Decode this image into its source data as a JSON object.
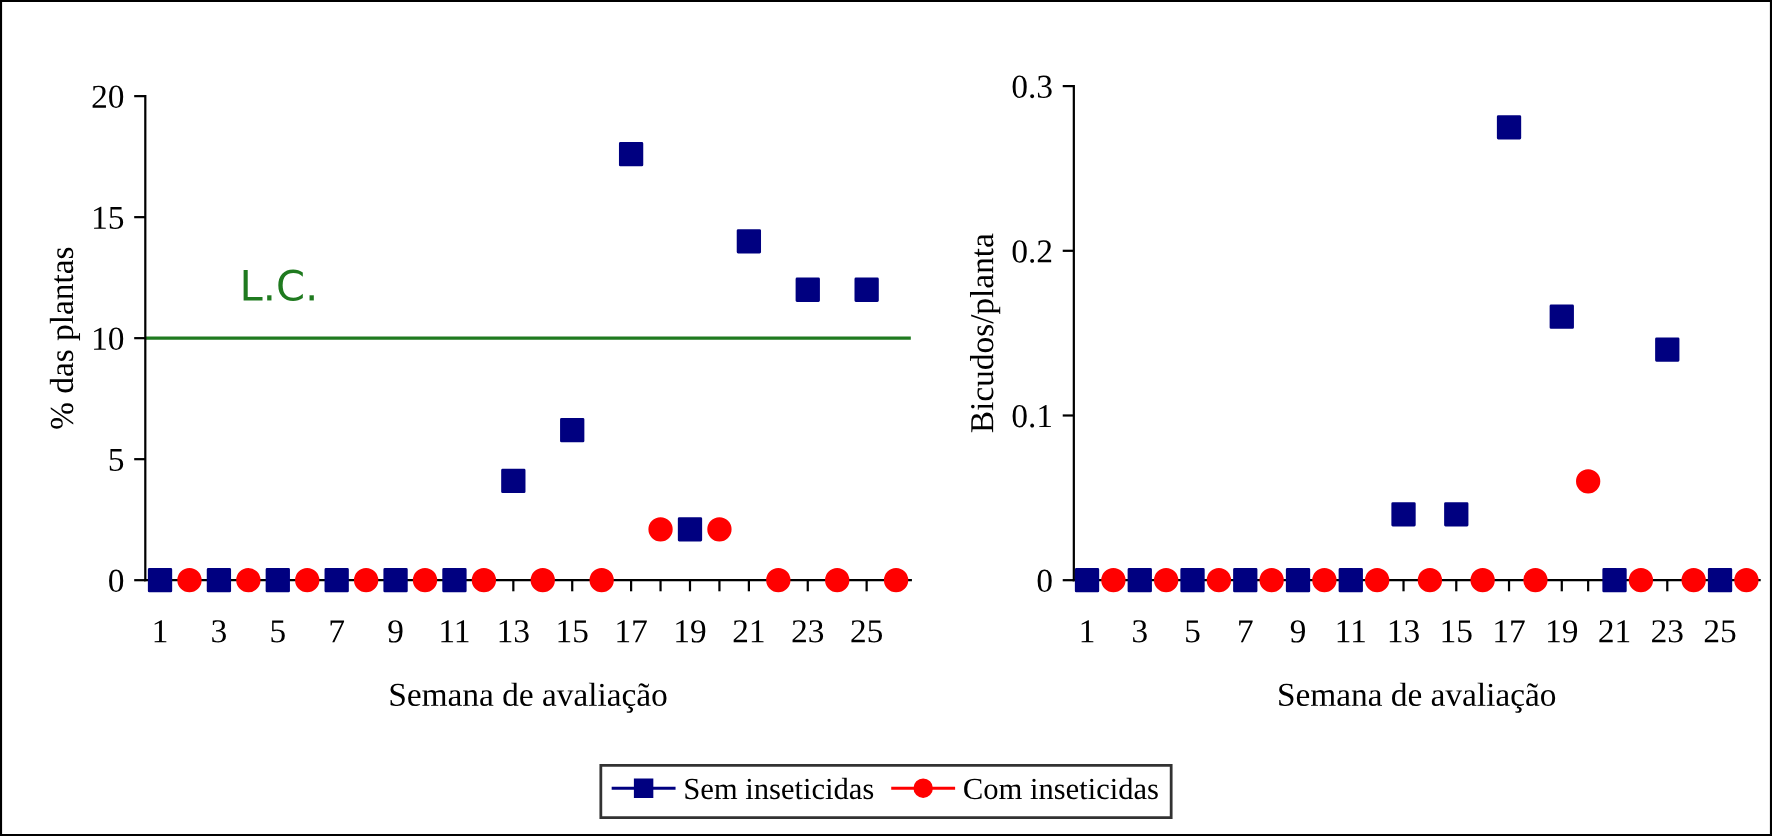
{
  "chart_data": [
    {
      "type": "scatter",
      "xlabel": "Semana de avaliação",
      "ylabel": "% das plantas",
      "categories": [
        "1",
        null,
        "3",
        null,
        "5",
        null,
        "7",
        null,
        "9",
        null,
        "11",
        null,
        "13",
        null,
        "15",
        null,
        "17",
        null,
        "19",
        null,
        "21",
        null,
        "23",
        null,
        "25",
        null
      ],
      "series": [
        {
          "name": "Sem inseticidas",
          "color": "#000080",
          "marker": "square",
          "values": [
            0,
            null,
            0,
            null,
            0,
            null,
            0,
            null,
            0,
            null,
            0,
            null,
            4.1,
            null,
            6.2,
            null,
            17.6,
            null,
            2.1,
            null,
            14,
            null,
            12,
            null,
            12,
            null
          ]
        },
        {
          "name": "Com inseticidas",
          "color": "#ff0000",
          "marker": "circle",
          "values": [
            null,
            0,
            null,
            0,
            null,
            0,
            null,
            0,
            null,
            0,
            null,
            0,
            null,
            0,
            null,
            0,
            null,
            2.1,
            null,
            2.1,
            null,
            0,
            null,
            0,
            null,
            0
          ]
        }
      ],
      "ylim": [
        0,
        20
      ],
      "yticks": [
        0,
        5,
        10,
        15,
        20
      ],
      "ref_lines": [
        {
          "axis": "y",
          "value": 10,
          "label": "L.C.",
          "color": "#1f7a1f"
        }
      ],
      "legend": "bottom",
      "grid": false
    },
    {
      "type": "scatter",
      "xlabel": "Semana de avaliação",
      "ylabel": "Bicudos/planta",
      "categories": [
        "1",
        null,
        "3",
        null,
        "5",
        null,
        "7",
        null,
        "9",
        null,
        "11",
        null,
        "13",
        null,
        "15",
        null,
        "17",
        null,
        "19",
        null,
        "21",
        null,
        "23",
        null,
        "25",
        null
      ],
      "series": [
        {
          "name": "Sem inseticidas",
          "color": "#000080",
          "marker": "square",
          "values": [
            0,
            null,
            0,
            null,
            0,
            null,
            0,
            null,
            0,
            null,
            0,
            null,
            0.04,
            null,
            0.04,
            null,
            0.275,
            null,
            0.16,
            null,
            0,
            null,
            0.14,
            null,
            0,
            null
          ]
        },
        {
          "name": "Com inseticidas",
          "color": "#ff0000",
          "marker": "circle",
          "values": [
            null,
            0,
            null,
            0,
            null,
            0,
            null,
            0,
            null,
            0,
            null,
            0,
            null,
            0,
            null,
            0,
            null,
            0,
            null,
            0.06,
            null,
            0,
            null,
            0,
            null,
            0
          ]
        }
      ],
      "ylim": [
        0,
        0.3
      ],
      "yticks": [
        0,
        0.1,
        0.2,
        0.3
      ],
      "legend": "bottom",
      "grid": false
    }
  ]
}
